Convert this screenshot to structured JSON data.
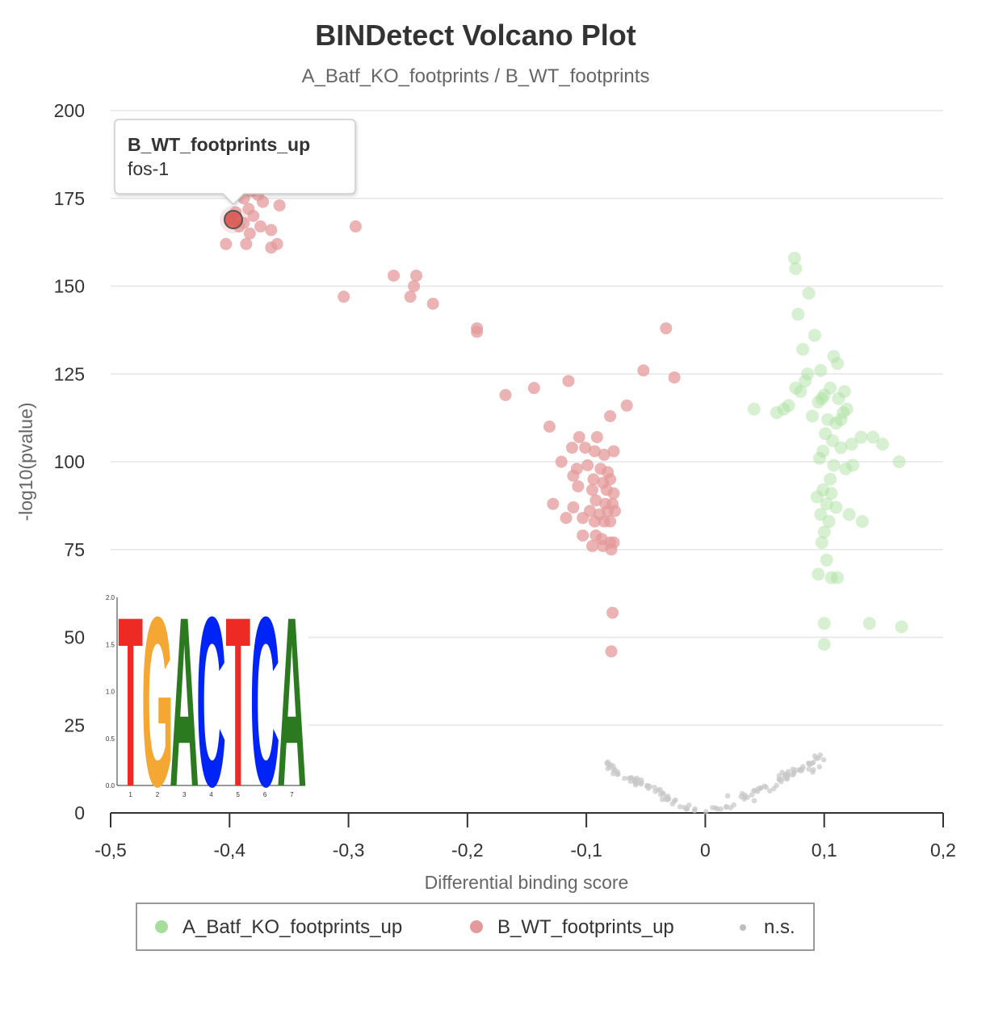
{
  "chart_data": {
    "type": "scatter",
    "title": "BINDetect Volcano Plot",
    "subtitle": "A_Batf_KO_footprints / B_WT_footprints",
    "xlabel": "Differential binding score",
    "ylabel": "-log10(pvalue)",
    "xlim": [
      -0.5,
      0.2
    ],
    "ylim": [
      0,
      200
    ],
    "x_ticks": [
      "-0,5",
      "-0,4",
      "-0,3",
      "-0,2",
      "-0,1",
      "0",
      "0,1",
      "0,2"
    ],
    "y_ticks": [
      "0",
      "25",
      "50",
      "75",
      "100",
      "125",
      "150",
      "175",
      "200"
    ],
    "grid": "horizontal",
    "legend_position": "bottom",
    "series": [
      {
        "name": "A_Batf_KO_footprints_up",
        "color": "#a6dd9a",
        "points": [
          [
            0.075,
            158
          ],
          [
            0.076,
            155
          ],
          [
            0.087,
            148
          ],
          [
            0.078,
            142
          ],
          [
            0.092,
            136
          ],
          [
            0.082,
            132
          ],
          [
            0.108,
            130
          ],
          [
            0.111,
            128
          ],
          [
            0.097,
            126
          ],
          [
            0.086,
            125
          ],
          [
            0.084,
            123
          ],
          [
            0.076,
            121
          ],
          [
            0.08,
            120
          ],
          [
            0.1,
            119
          ],
          [
            0.112,
            118
          ],
          [
            0.117,
            120
          ],
          [
            0.105,
            121
          ],
          [
            0.098,
            118
          ],
          [
            0.095,
            117
          ],
          [
            0.07,
            116
          ],
          [
            0.066,
            115
          ],
          [
            0.041,
            115
          ],
          [
            0.06,
            114
          ],
          [
            0.09,
            113
          ],
          [
            0.103,
            112
          ],
          [
            0.116,
            114
          ],
          [
            0.11,
            111
          ],
          [
            0.101,
            108
          ],
          [
            0.107,
            106
          ],
          [
            0.114,
            104
          ],
          [
            0.099,
            103
          ],
          [
            0.096,
            101
          ],
          [
            0.108,
            99
          ],
          [
            0.123,
            105
          ],
          [
            0.131,
            107
          ],
          [
            0.141,
            107
          ],
          [
            0.149,
            105
          ],
          [
            0.124,
            99
          ],
          [
            0.118,
            98
          ],
          [
            0.105,
            95
          ],
          [
            0.099,
            92
          ],
          [
            0.106,
            91
          ],
          [
            0.094,
            90
          ],
          [
            0.102,
            88
          ],
          [
            0.11,
            87
          ],
          [
            0.097,
            85
          ],
          [
            0.104,
            83
          ],
          [
            0.121,
            85
          ],
          [
            0.132,
            83
          ],
          [
            0.1,
            80
          ],
          [
            0.098,
            77
          ],
          [
            0.102,
            72
          ],
          [
            0.095,
            68
          ],
          [
            0.106,
            67
          ],
          [
            0.111,
            67
          ],
          [
            0.1,
            54
          ],
          [
            0.138,
            54
          ],
          [
            0.165,
            53
          ],
          [
            0.1,
            48
          ],
          [
            0.163,
            100
          ],
          [
            0.114,
            112
          ],
          [
            0.119,
            115
          ]
        ]
      },
      {
        "name": "B_WT_footprints_up",
        "color": "#e49a9a",
        "points": [
          [
            -0.399,
            169
          ],
          [
            -0.395,
            171
          ],
          [
            -0.388,
            175
          ],
          [
            -0.382,
            177
          ],
          [
            -0.376,
            176
          ],
          [
            -0.372,
            174
          ],
          [
            -0.384,
            172
          ],
          [
            -0.38,
            170
          ],
          [
            -0.388,
            168
          ],
          [
            -0.392,
            167
          ],
          [
            -0.383,
            165
          ],
          [
            -0.374,
            167
          ],
          [
            -0.365,
            166
          ],
          [
            -0.358,
            173
          ],
          [
            -0.386,
            162
          ],
          [
            -0.365,
            161
          ],
          [
            -0.36,
            162
          ],
          [
            -0.403,
            162
          ],
          [
            -0.294,
            167
          ],
          [
            -0.262,
            153
          ],
          [
            -0.243,
            153
          ],
          [
            -0.245,
            150
          ],
          [
            -0.248,
            147
          ],
          [
            -0.229,
            145
          ],
          [
            -0.304,
            147
          ],
          [
            -0.192,
            138
          ],
          [
            -0.192,
            137
          ],
          [
            -0.144,
            121
          ],
          [
            -0.168,
            119
          ],
          [
            -0.115,
            123
          ],
          [
            -0.026,
            124
          ],
          [
            -0.033,
            138
          ],
          [
            -0.052,
            126
          ],
          [
            -0.066,
            116
          ],
          [
            -0.08,
            113
          ],
          [
            -0.131,
            110
          ],
          [
            -0.112,
            104
          ],
          [
            -0.106,
            107
          ],
          [
            -0.091,
            107
          ],
          [
            -0.101,
            104
          ],
          [
            -0.093,
            103
          ],
          [
            -0.085,
            102
          ],
          [
            -0.077,
            103
          ],
          [
            -0.121,
            100
          ],
          [
            -0.108,
            98
          ],
          [
            -0.099,
            99
          ],
          [
            -0.088,
            98
          ],
          [
            -0.082,
            97
          ],
          [
            -0.111,
            96
          ],
          [
            -0.094,
            95
          ],
          [
            -0.086,
            94
          ],
          [
            -0.08,
            95
          ],
          [
            -0.107,
            93
          ],
          [
            -0.095,
            92
          ],
          [
            -0.083,
            92
          ],
          [
            -0.077,
            91
          ],
          [
            -0.092,
            89
          ],
          [
            -0.084,
            88
          ],
          [
            -0.078,
            88
          ],
          [
            -0.128,
            88
          ],
          [
            -0.111,
            87
          ],
          [
            -0.097,
            86
          ],
          [
            -0.089,
            85
          ],
          [
            -0.082,
            86
          ],
          [
            -0.076,
            86
          ],
          [
            -0.117,
            84
          ],
          [
            -0.103,
            84
          ],
          [
            -0.093,
            83
          ],
          [
            -0.085,
            83
          ],
          [
            -0.08,
            83
          ],
          [
            -0.103,
            79
          ],
          [
            -0.092,
            79
          ],
          [
            -0.087,
            78
          ],
          [
            -0.08,
            77
          ],
          [
            -0.077,
            77
          ],
          [
            -0.095,
            76
          ],
          [
            -0.086,
            76
          ],
          [
            -0.079,
            75
          ],
          [
            -0.078,
            57
          ],
          [
            -0.079,
            46
          ]
        ]
      },
      {
        "name": "n.s.",
        "color": "#c8c8c8",
        "points": []
      }
    ],
    "tooltip": {
      "series": "B_WT_footprints_up",
      "label": "fos-1"
    },
    "motif_logo": {
      "letters": [
        {
          "letter": "T",
          "color": "#ee2a24"
        },
        {
          "letter": "G",
          "color": "#f5a733"
        },
        {
          "letter": "A",
          "color": "#2b7a20"
        },
        {
          "letter": "C",
          "color": "#0024f5"
        },
        {
          "letter": "T",
          "color": "#ee2a24"
        },
        {
          "letter": "C",
          "color": "#0024f5"
        },
        {
          "letter": "A",
          "color": "#2b7a20"
        }
      ],
      "x_ticks": [
        "1",
        "2",
        "3",
        "4",
        "5",
        "6",
        "7"
      ],
      "y_ticks": [
        "0.0",
        "0.5",
        "1.0",
        "1.5",
        "2.0"
      ]
    }
  }
}
